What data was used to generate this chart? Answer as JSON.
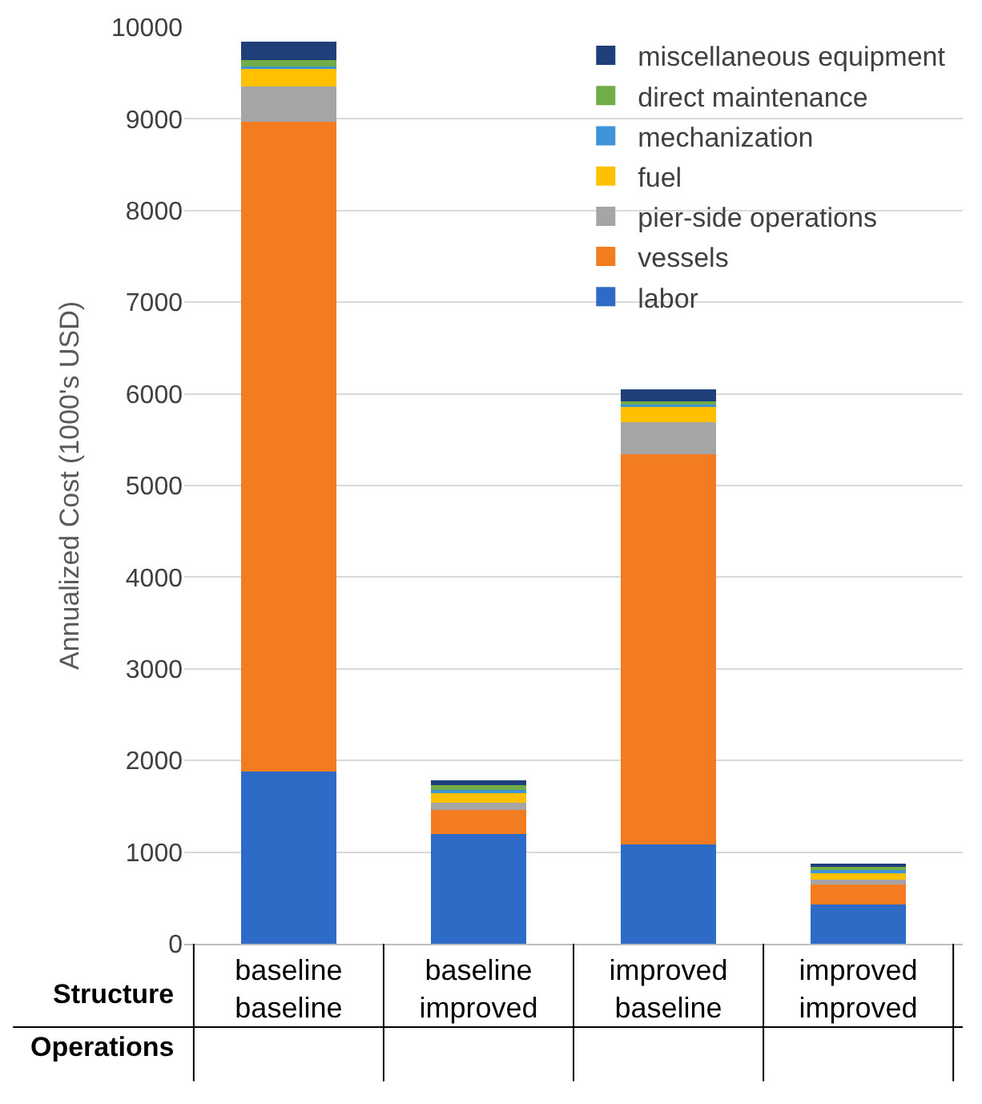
{
  "chart_data": {
    "type": "bar",
    "stacked": true,
    "ylabel": "Annualized Cost (1000's USD)",
    "categories": [
      "baseline\nbaseline",
      "baseline\nimproved",
      "improved\nbaseline",
      "improved\nimproved"
    ],
    "annotations": [
      "Structure",
      "Operations"
    ],
    "series": [
      {
        "name": "labor",
        "color": "#2e6bc6",
        "values": [
          1880,
          1200,
          1080,
          430
        ]
      },
      {
        "name": "vessels",
        "color": "#f47c20",
        "values": [
          7090,
          260,
          4260,
          220
        ]
      },
      {
        "name": "pier-side operations",
        "color": "#a5a5a5",
        "values": [
          380,
          80,
          350,
          50
        ]
      },
      {
        "name": "fuel",
        "color": "#ffc000",
        "values": [
          210,
          100,
          180,
          80
        ]
      },
      {
        "name": "mechanization",
        "color": "#3f94d8",
        "values": [
          10,
          40,
          10,
          30
        ]
      },
      {
        "name": "direct maintenance",
        "color": "#70ad47",
        "values": [
          70,
          50,
          40,
          30
        ]
      },
      {
        "name": "miscellaneous equipment",
        "color": "#1f3f7a",
        "values": [
          200,
          50,
          130,
          30
        ]
      }
    ],
    "ylim": [
      0,
      10000
    ],
    "yticks": [
      0,
      1000,
      2000,
      3000,
      4000,
      5000,
      6000,
      7000,
      8000,
      9000,
      10000
    ],
    "grid": "y",
    "legend": "top right"
  }
}
